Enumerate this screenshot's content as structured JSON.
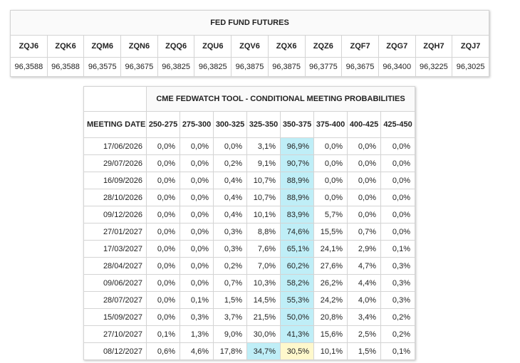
{
  "futures": {
    "title": "FED FUND FUTURES",
    "contracts": [
      "ZQJ6",
      "ZQK6",
      "ZQM6",
      "ZQN6",
      "ZQQ6",
      "ZQU6",
      "ZQV6",
      "ZQX6",
      "ZQZ6",
      "ZQF7",
      "ZQG7",
      "ZQH7",
      "ZQJ7"
    ],
    "prices": [
      "96,3588",
      "96,3588",
      "96,3575",
      "96,3675",
      "96,3825",
      "96,3825",
      "96,3875",
      "96,3875",
      "96,3775",
      "96,3675",
      "96,3400",
      "96,3225",
      "96,3025"
    ]
  },
  "fedwatch": {
    "title": "CME FEDWATCH TOOL - CONDITIONAL MEETING PROBABILITIES",
    "meeting_date_header": "MEETING DATE",
    "ranges": [
      "250-275",
      "275-300",
      "300-325",
      "325-350",
      "350-375",
      "375-400",
      "400-425",
      "425-450"
    ],
    "highlight_colors": {
      "blue": "#bfeef7",
      "yellow": "#fff8cc"
    },
    "rows": [
      {
        "date": "17/06/2026",
        "values": [
          "0,0%",
          "0,0%",
          "0,0%",
          "3,1%",
          "96,9%",
          "0,0%",
          "0,0%",
          "0,0%"
        ],
        "highlight": {
          "4": "blue"
        }
      },
      {
        "date": "29/07/2026",
        "values": [
          "0,0%",
          "0,0%",
          "0,2%",
          "9,1%",
          "90,7%",
          "0,0%",
          "0,0%",
          "0,0%"
        ],
        "highlight": {
          "4": "blue"
        }
      },
      {
        "date": "16/09/2026",
        "values": [
          "0,0%",
          "0,0%",
          "0,4%",
          "10,7%",
          "88,9%",
          "0,0%",
          "0,0%",
          "0,0%"
        ],
        "highlight": {
          "4": "blue"
        }
      },
      {
        "date": "28/10/2026",
        "values": [
          "0,0%",
          "0,0%",
          "0,4%",
          "10,7%",
          "88,9%",
          "0,0%",
          "0,0%",
          "0,0%"
        ],
        "highlight": {
          "4": "blue"
        }
      },
      {
        "date": "09/12/2026",
        "values": [
          "0,0%",
          "0,0%",
          "0,4%",
          "10,1%",
          "83,9%",
          "5,7%",
          "0,0%",
          "0,0%"
        ],
        "highlight": {
          "4": "blue"
        }
      },
      {
        "date": "27/01/2027",
        "values": [
          "0,0%",
          "0,0%",
          "0,3%",
          "8,8%",
          "74,6%",
          "15,5%",
          "0,7%",
          "0,0%"
        ],
        "highlight": {
          "4": "blue"
        }
      },
      {
        "date": "17/03/2027",
        "values": [
          "0,0%",
          "0,0%",
          "0,3%",
          "7,6%",
          "65,1%",
          "24,1%",
          "2,9%",
          "0,1%"
        ],
        "highlight": {
          "4": "blue"
        }
      },
      {
        "date": "28/04/2027",
        "values": [
          "0,0%",
          "0,0%",
          "0,2%",
          "7,0%",
          "60,2%",
          "27,6%",
          "4,7%",
          "0,3%"
        ],
        "highlight": {
          "4": "blue"
        }
      },
      {
        "date": "09/06/2027",
        "values": [
          "0,0%",
          "0,0%",
          "0,7%",
          "10,3%",
          "58,2%",
          "26,2%",
          "4,4%",
          "0,3%"
        ],
        "highlight": {
          "4": "blue"
        }
      },
      {
        "date": "28/07/2027",
        "values": [
          "0,0%",
          "0,1%",
          "1,5%",
          "14,5%",
          "55,3%",
          "24,2%",
          "4,0%",
          "0,3%"
        ],
        "highlight": {
          "4": "blue"
        }
      },
      {
        "date": "15/09/2027",
        "values": [
          "0,0%",
          "0,3%",
          "3,7%",
          "21,5%",
          "50,0%",
          "20,8%",
          "3,4%",
          "0,2%"
        ],
        "highlight": {
          "4": "blue"
        }
      },
      {
        "date": "27/10/2027",
        "values": [
          "0,1%",
          "1,3%",
          "9,0%",
          "30,0%",
          "41,3%",
          "15,6%",
          "2,5%",
          "0,2%"
        ],
        "highlight": {
          "4": "blue"
        }
      },
      {
        "date": "08/12/2027",
        "values": [
          "0,6%",
          "4,6%",
          "17,8%",
          "34,7%",
          "30,5%",
          "10,1%",
          "1,5%",
          "0,1%"
        ],
        "highlight": {
          "3": "blue",
          "4": "yellow"
        }
      }
    ]
  }
}
